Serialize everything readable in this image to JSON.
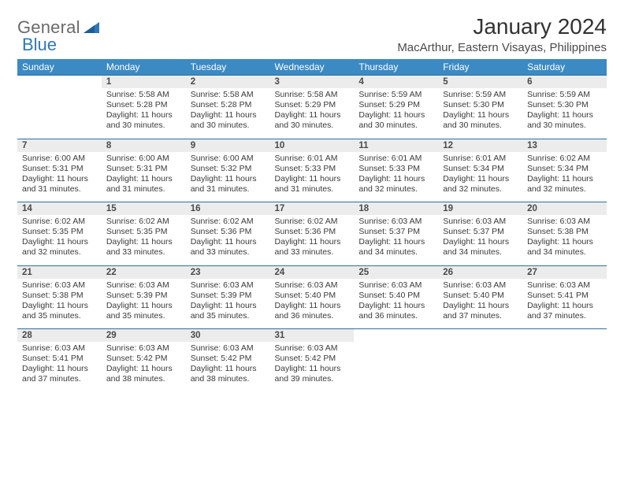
{
  "brand": {
    "part1": "General",
    "part2": "Blue",
    "color1": "#6a6a6a",
    "color2": "#2f78b8"
  },
  "title": "January 2024",
  "location": "MacArthur, Eastern Visayas, Philippines",
  "header_bg": "#3b8ac4",
  "header_text_color": "#ffffff",
  "daynum_bg": "#ececec",
  "rule_color": "#2e6fa3",
  "dayNames": [
    "Sunday",
    "Monday",
    "Tuesday",
    "Wednesday",
    "Thursday",
    "Friday",
    "Saturday"
  ],
  "weeks": [
    [
      null,
      {
        "n": "1",
        "sr": "5:58 AM",
        "ss": "5:28 PM",
        "dl": "11 hours and 30 minutes."
      },
      {
        "n": "2",
        "sr": "5:58 AM",
        "ss": "5:28 PM",
        "dl": "11 hours and 30 minutes."
      },
      {
        "n": "3",
        "sr": "5:58 AM",
        "ss": "5:29 PM",
        "dl": "11 hours and 30 minutes."
      },
      {
        "n": "4",
        "sr": "5:59 AM",
        "ss": "5:29 PM",
        "dl": "11 hours and 30 minutes."
      },
      {
        "n": "5",
        "sr": "5:59 AM",
        "ss": "5:30 PM",
        "dl": "11 hours and 30 minutes."
      },
      {
        "n": "6",
        "sr": "5:59 AM",
        "ss": "5:30 PM",
        "dl": "11 hours and 30 minutes."
      }
    ],
    [
      {
        "n": "7",
        "sr": "6:00 AM",
        "ss": "5:31 PM",
        "dl": "11 hours and 31 minutes."
      },
      {
        "n": "8",
        "sr": "6:00 AM",
        "ss": "5:31 PM",
        "dl": "11 hours and 31 minutes."
      },
      {
        "n": "9",
        "sr": "6:00 AM",
        "ss": "5:32 PM",
        "dl": "11 hours and 31 minutes."
      },
      {
        "n": "10",
        "sr": "6:01 AM",
        "ss": "5:33 PM",
        "dl": "11 hours and 31 minutes."
      },
      {
        "n": "11",
        "sr": "6:01 AM",
        "ss": "5:33 PM",
        "dl": "11 hours and 32 minutes."
      },
      {
        "n": "12",
        "sr": "6:01 AM",
        "ss": "5:34 PM",
        "dl": "11 hours and 32 minutes."
      },
      {
        "n": "13",
        "sr": "6:02 AM",
        "ss": "5:34 PM",
        "dl": "11 hours and 32 minutes."
      }
    ],
    [
      {
        "n": "14",
        "sr": "6:02 AM",
        "ss": "5:35 PM",
        "dl": "11 hours and 32 minutes."
      },
      {
        "n": "15",
        "sr": "6:02 AM",
        "ss": "5:35 PM",
        "dl": "11 hours and 33 minutes."
      },
      {
        "n": "16",
        "sr": "6:02 AM",
        "ss": "5:36 PM",
        "dl": "11 hours and 33 minutes."
      },
      {
        "n": "17",
        "sr": "6:02 AM",
        "ss": "5:36 PM",
        "dl": "11 hours and 33 minutes."
      },
      {
        "n": "18",
        "sr": "6:03 AM",
        "ss": "5:37 PM",
        "dl": "11 hours and 34 minutes."
      },
      {
        "n": "19",
        "sr": "6:03 AM",
        "ss": "5:37 PM",
        "dl": "11 hours and 34 minutes."
      },
      {
        "n": "20",
        "sr": "6:03 AM",
        "ss": "5:38 PM",
        "dl": "11 hours and 34 minutes."
      }
    ],
    [
      {
        "n": "21",
        "sr": "6:03 AM",
        "ss": "5:38 PM",
        "dl": "11 hours and 35 minutes."
      },
      {
        "n": "22",
        "sr": "6:03 AM",
        "ss": "5:39 PM",
        "dl": "11 hours and 35 minutes."
      },
      {
        "n": "23",
        "sr": "6:03 AM",
        "ss": "5:39 PM",
        "dl": "11 hours and 35 minutes."
      },
      {
        "n": "24",
        "sr": "6:03 AM",
        "ss": "5:40 PM",
        "dl": "11 hours and 36 minutes."
      },
      {
        "n": "25",
        "sr": "6:03 AM",
        "ss": "5:40 PM",
        "dl": "11 hours and 36 minutes."
      },
      {
        "n": "26",
        "sr": "6:03 AM",
        "ss": "5:40 PM",
        "dl": "11 hours and 37 minutes."
      },
      {
        "n": "27",
        "sr": "6:03 AM",
        "ss": "5:41 PM",
        "dl": "11 hours and 37 minutes."
      }
    ],
    [
      {
        "n": "28",
        "sr": "6:03 AM",
        "ss": "5:41 PM",
        "dl": "11 hours and 37 minutes."
      },
      {
        "n": "29",
        "sr": "6:03 AM",
        "ss": "5:42 PM",
        "dl": "11 hours and 38 minutes."
      },
      {
        "n": "30",
        "sr": "6:03 AM",
        "ss": "5:42 PM",
        "dl": "11 hours and 38 minutes."
      },
      {
        "n": "31",
        "sr": "6:03 AM",
        "ss": "5:42 PM",
        "dl": "11 hours and 39 minutes."
      },
      null,
      null,
      null
    ]
  ],
  "labels": {
    "sunrise": "Sunrise: ",
    "sunset": "Sunset: ",
    "daylight": "Daylight: "
  }
}
